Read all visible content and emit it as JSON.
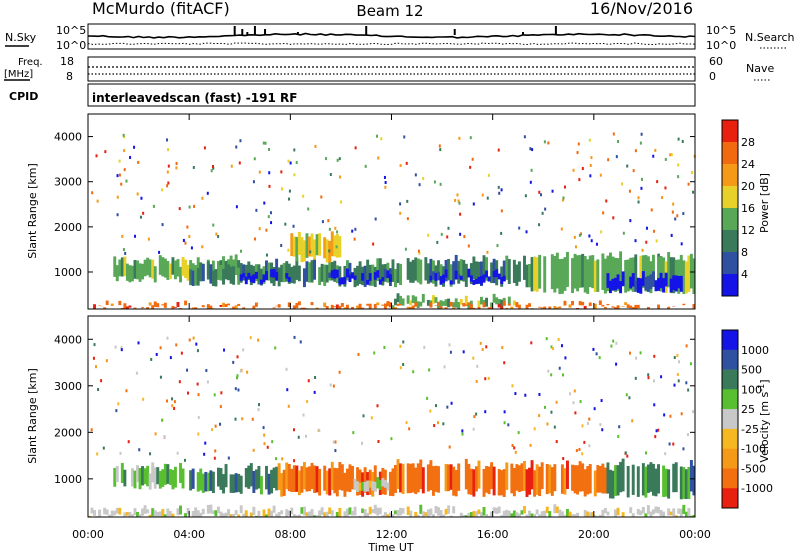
{
  "header": {
    "station": "McMurdo (fitACF)",
    "beam": "Beam 12",
    "date": "16/Nov/2016"
  },
  "summary": {
    "nsky_label": "N.Sky",
    "nsearch_label": "N.Search",
    "noise_tick_top": "10^5",
    "noise_tick_bottom": "10^0",
    "freq_label": "Freq.",
    "freq_unit": "[MHz]",
    "freq_tick_top": "18",
    "freq_tick_bottom": "8",
    "nave_label": "Nave",
    "nave_tick_top": "60",
    "nave_tick_bottom": "0",
    "cpid_label": "CPID",
    "cpid_text": "interleavedscan (fast) -191 RF"
  },
  "axes": {
    "xlabel": "Time UT",
    "ylabel": "Slant Range [km]",
    "xticks": [
      "00:00",
      "04:00",
      "08:00",
      "12:00",
      "16:00",
      "20:00",
      "00:00"
    ],
    "yticks": [
      "1000",
      "2000",
      "3000",
      "4000"
    ]
  },
  "colors": {
    "power": [
      "#1414e6",
      "#3050a0",
      "#3a7a5a",
      "#58a858",
      "#e8d22a",
      "#f59a18",
      "#f26a10",
      "#e82010"
    ],
    "velocity": [
      "#1414e6",
      "#3050a0",
      "#3a7a5a",
      "#58c030",
      "#c8c8c8",
      "#f5b820",
      "#f59a18",
      "#f27010",
      "#e82010"
    ]
  },
  "chart_data": [
    {
      "type": "heatmap",
      "title": "Power",
      "ylabel": "Slant Range [km]",
      "xlabel": "Time UT",
      "x_range_hours": [
        0,
        24
      ],
      "ylim": [
        180,
        4500
      ],
      "colorbar_label": "Power [dB]",
      "colorbar_ticks": [
        "4",
        "8",
        "12",
        "16",
        "20",
        "24",
        "28"
      ],
      "bands": [
        {
          "t0": 1.0,
          "t1": 6.0,
          "r0": 850,
          "r1": 1250,
          "level": 4
        },
        {
          "t0": 4.0,
          "t1": 8.5,
          "r0": 750,
          "r1": 1150,
          "level": 5
        },
        {
          "t0": 6.0,
          "t1": 8.0,
          "r0": 800,
          "r1": 950,
          "level": 7
        },
        {
          "t0": 8.5,
          "t1": 12.5,
          "r0": 750,
          "r1": 1200,
          "level": 5
        },
        {
          "t0": 9.5,
          "t1": 12.0,
          "r0": 800,
          "r1": 950,
          "level": 7
        },
        {
          "t0": 12.5,
          "t1": 17.5,
          "r0": 750,
          "r1": 1250,
          "level": 5
        },
        {
          "t0": 13.5,
          "t1": 16.5,
          "r0": 800,
          "r1": 950,
          "level": 7
        },
        {
          "t0": 17.5,
          "t1": 24.0,
          "r0": 600,
          "r1": 1350,
          "level": 4
        },
        {
          "t0": 20.5,
          "t1": 23.5,
          "r0": 600,
          "r1": 900,
          "level": 7
        },
        {
          "t0": 8.0,
          "t1": 10.0,
          "r0": 1300,
          "r1": 1800,
          "level": 3
        },
        {
          "t0": 12.0,
          "t1": 17.0,
          "r0": 250,
          "r1": 400,
          "level": 4
        },
        {
          "t0": 0.0,
          "t1": 24.0,
          "r0": 180,
          "r1": 240,
          "level": 1
        }
      ]
    },
    {
      "type": "heatmap",
      "title": "Velocity",
      "ylabel": "Slant Range [km]",
      "xlabel": "Time UT",
      "x_range_hours": [
        0,
        24
      ],
      "ylim": [
        180,
        4500
      ],
      "colorbar_label": "Velocity [m s^-1]",
      "colorbar_ticks": [
        "1000",
        "500",
        "100",
        "25",
        "-25",
        "-100",
        "-500",
        "-1000"
      ],
      "bands": [
        {
          "t0": 1.0,
          "t1": 4.0,
          "r0": 850,
          "r1": 1250,
          "level": 3
        },
        {
          "t0": 4.0,
          "t1": 7.5,
          "r0": 750,
          "r1": 1200,
          "level": 2
        },
        {
          "t0": 7.5,
          "t1": 12.0,
          "r0": 700,
          "r1": 1250,
          "level": 7
        },
        {
          "t0": 12.0,
          "t1": 17.5,
          "r0": 700,
          "r1": 1300,
          "level": 7
        },
        {
          "t0": 10.5,
          "t1": 12.0,
          "r0": 800,
          "r1": 1000,
          "level": 4
        },
        {
          "t0": 17.5,
          "t1": 20.5,
          "r0": 700,
          "r1": 1300,
          "level": 7
        },
        {
          "t0": 20.5,
          "t1": 24.0,
          "r0": 650,
          "r1": 1300,
          "level": 2
        },
        {
          "t0": 0.0,
          "t1": 24.0,
          "r0": 180,
          "r1": 320,
          "level": 4
        }
      ]
    }
  ]
}
